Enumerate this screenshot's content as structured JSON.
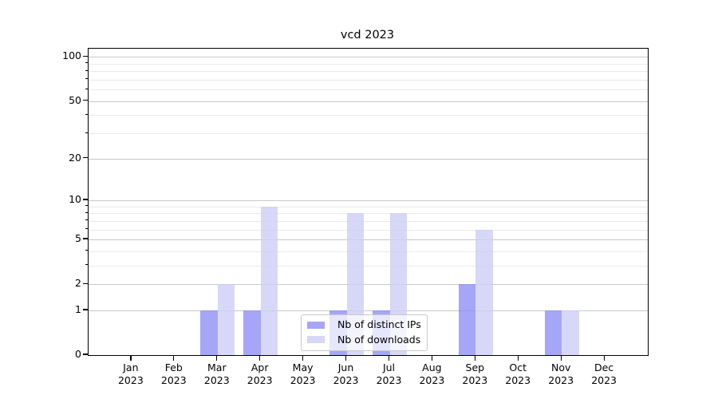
{
  "chart_data": {
    "type": "bar",
    "title": "vcd 2023",
    "xlabel": "",
    "ylabel": "",
    "year_line": "2023",
    "categories": [
      "Jan",
      "Feb",
      "Mar",
      "Apr",
      "May",
      "Jun",
      "Jul",
      "Aug",
      "Sep",
      "Oct",
      "Nov",
      "Dec"
    ],
    "series": [
      {
        "name": "Nb of distinct IPs",
        "color": "rgba(136,136,243,0.75)",
        "values": [
          0,
          0,
          1,
          1,
          0,
          1,
          1,
          0,
          2,
          0,
          1,
          0
        ]
      },
      {
        "name": "Nb of downloads",
        "color": "rgba(206,206,246,0.82)",
        "values": [
          0,
          0,
          2,
          9,
          0,
          8,
          8,
          0,
          6,
          0,
          1,
          0
        ]
      }
    ],
    "y_axis": {
      "scale": "log10(1+x)",
      "major_ticks": [
        0,
        1,
        2,
        5,
        10,
        20,
        50,
        100
      ],
      "minor_gridlines": [
        3,
        4,
        6,
        7,
        8,
        9,
        30,
        40,
        60,
        70,
        80,
        90
      ],
      "ylim": [
        0,
        110
      ]
    },
    "legend_position": "lower center",
    "grid": true
  }
}
